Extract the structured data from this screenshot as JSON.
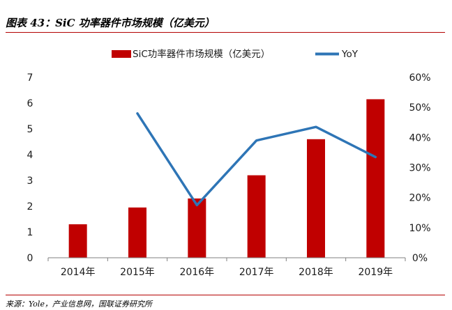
{
  "title": "图表 43：SiC 功率器件市场规模（亿美元）",
  "source": "来源：Yole，产业信息网，国联证券研究所",
  "colors": {
    "bar": "#c00000",
    "line": "#2e75b6",
    "rule": "#b30000",
    "axis": "#7f7f7f"
  },
  "chart_data": {
    "type": "bar+line",
    "categories": [
      "2014年",
      "2015年",
      "2016年",
      "2017年",
      "2018年",
      "2019年"
    ],
    "series": [
      {
        "name": "SiC功率器件市场规模（亿美元）",
        "type": "bar",
        "axis": "left",
        "values": [
          1.3,
          1.95,
          2.3,
          3.2,
          4.6,
          6.15
        ]
      },
      {
        "name": "YoY",
        "type": "line",
        "axis": "right",
        "values": [
          null,
          48,
          17.5,
          39,
          43.5,
          33.5
        ]
      }
    ],
    "y_left": {
      "range": [
        0,
        7
      ],
      "ticks": [
        "0",
        "1",
        "2",
        "3",
        "4",
        "5",
        "6",
        "7"
      ]
    },
    "y_right": {
      "range": [
        0,
        60
      ],
      "ticks": [
        "0%",
        "10%",
        "20%",
        "30%",
        "40%",
        "50%",
        "60%"
      ]
    },
    "legend_position": "top-center",
    "grid": false
  }
}
